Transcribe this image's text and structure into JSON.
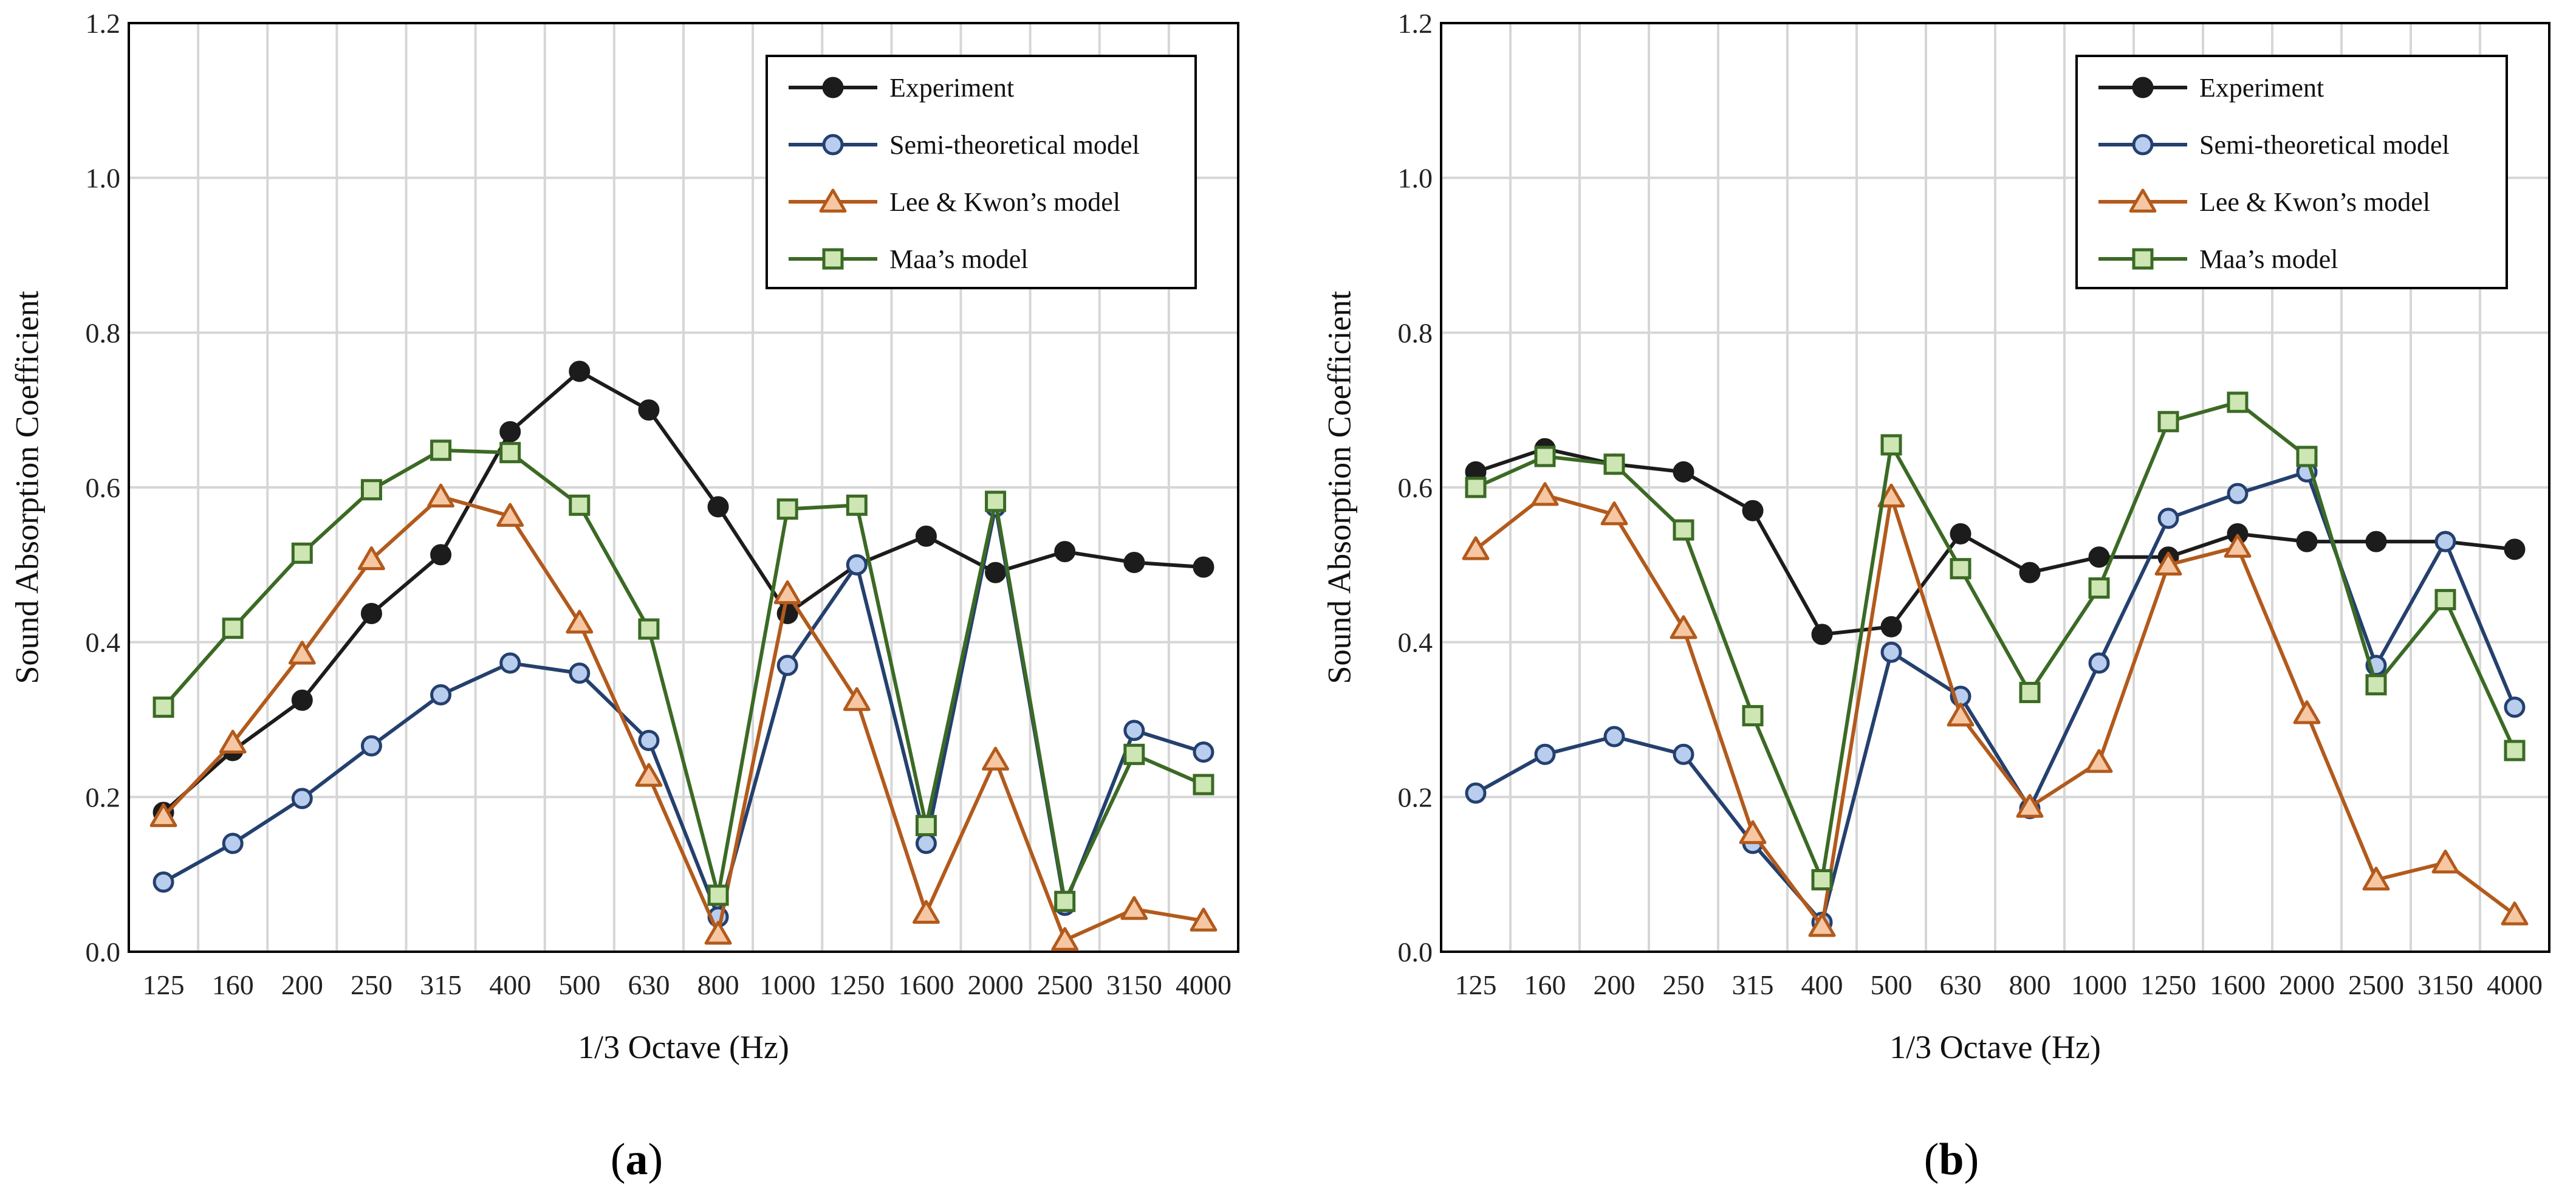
{
  "chart_data": [
    {
      "type": "line",
      "panel_label": "a",
      "title": "",
      "xlabel": "1/3 Octave (Hz)",
      "ylabel": "Sound Absorption Coefficient",
      "ylim": [
        0,
        1.2
      ],
      "yticks": [
        "0.0",
        "0.2",
        "0.4",
        "0.6",
        "0.8",
        "1.0",
        "1.2"
      ],
      "grid": true,
      "legend_position": "top-right",
      "categories": [
        "125",
        "160",
        "200",
        "250",
        "315",
        "400",
        "500",
        "630",
        "800",
        "1000",
        "1250",
        "1600",
        "2000",
        "2500",
        "3150",
        "4000"
      ],
      "series": [
        {
          "name": "Experiment",
          "values": [
            0.18,
            0.26,
            0.325,
            0.437,
            0.513,
            0.672,
            0.75,
            0.7,
            0.575,
            0.437,
            0.5,
            0.537,
            0.49,
            0.517,
            0.503,
            0.497
          ]
        },
        {
          "name": "Semi-theoretical model",
          "values": [
            0.09,
            0.14,
            0.198,
            0.266,
            0.332,
            0.373,
            0.36,
            0.273,
            0.045,
            0.37,
            0.5,
            0.14,
            0.575,
            0.06,
            0.286,
            0.258
          ]
        },
        {
          "name": "Lee & Kwon’s model",
          "values": [
            0.175,
            0.27,
            0.385,
            0.507,
            0.588,
            0.563,
            0.425,
            0.227,
            0.023,
            0.463,
            0.325,
            0.05,
            0.248,
            0.015,
            0.055,
            0.04
          ]
        },
        {
          "name": "Maa’s model",
          "values": [
            0.316,
            0.418,
            0.515,
            0.597,
            0.648,
            0.645,
            0.577,
            0.417,
            0.073,
            0.572,
            0.577,
            0.163,
            0.582,
            0.065,
            0.255,
            0.216
          ]
        }
      ]
    },
    {
      "type": "line",
      "panel_label": "b",
      "title": "",
      "xlabel": "1/3 Octave (Hz)",
      "ylabel": "Sound Absorption Coefficient",
      "ylim": [
        0,
        1.2
      ],
      "yticks": [
        "0.0",
        "0.2",
        "0.4",
        "0.6",
        "0.8",
        "1.0",
        "1.2"
      ],
      "grid": true,
      "legend_position": "top-right",
      "categories": [
        "125",
        "160",
        "200",
        "250",
        "315",
        "400",
        "500",
        "630",
        "800",
        "1000",
        "1250",
        "1600",
        "2000",
        "2500",
        "3150",
        "4000"
      ],
      "series": [
        {
          "name": "Experiment",
          "values": [
            0.62,
            0.65,
            0.63,
            0.62,
            0.57,
            0.41,
            0.42,
            0.54,
            0.49,
            0.51,
            0.51,
            0.54,
            0.53,
            0.53,
            0.53,
            0.52
          ]
        },
        {
          "name": "Semi-theoretical model",
          "values": [
            0.205,
            0.255,
            0.278,
            0.255,
            0.14,
            0.038,
            0.387,
            0.33,
            0.185,
            0.373,
            0.56,
            0.592,
            0.62,
            0.37,
            0.53,
            0.316
          ]
        },
        {
          "name": "Lee & Kwon’s model",
          "values": [
            0.52,
            0.59,
            0.565,
            0.418,
            0.153,
            0.033,
            0.588,
            0.305,
            0.187,
            0.245,
            0.5,
            0.523,
            0.308,
            0.093,
            0.115,
            0.048
          ]
        },
        {
          "name": "Maa’s model",
          "values": [
            0.6,
            0.64,
            0.63,
            0.545,
            0.305,
            0.093,
            0.655,
            0.495,
            0.335,
            0.47,
            0.685,
            0.71,
            0.64,
            0.345,
            0.455,
            0.26
          ]
        }
      ]
    }
  ],
  "series_colors": {
    "Experiment": {
      "line": "#1c1c1c",
      "fill": "#1c1c1c",
      "marker": "circle"
    },
    "Semi-theoretical model": {
      "line": "#24406e",
      "fill": "#b9cdee",
      "marker": "circle"
    },
    "Lee & Kwon’s model": {
      "line": "#b25a1c",
      "fill": "#f6c7a2",
      "marker": "triangle"
    },
    "Maa’s model": {
      "line": "#3b6a24",
      "fill": "#cde6b3",
      "marker": "square"
    }
  }
}
